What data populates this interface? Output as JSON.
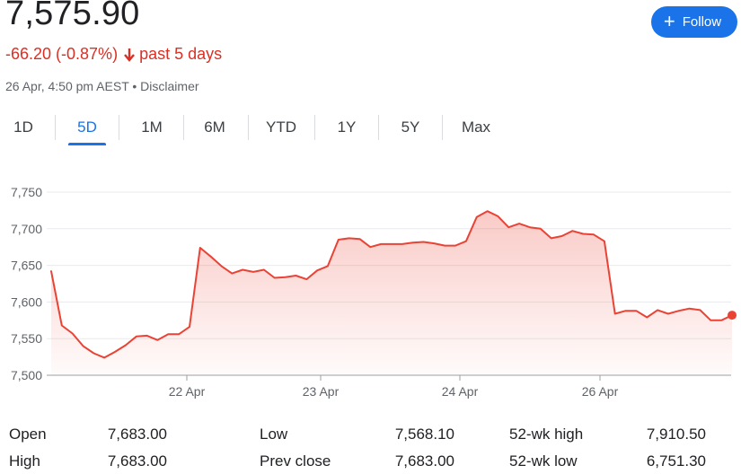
{
  "quote": {
    "price": "7,575.90",
    "change": "-66.20 (-0.87%)",
    "period": "past 5 days",
    "timestamp": "26 Apr, 4:50 pm AEST • Disclaimer",
    "down_color": "#d93025"
  },
  "follow_button": {
    "label": "Follow",
    "icon": "plus-icon",
    "color": "#1a73e8"
  },
  "tabs": [
    {
      "label": "1D"
    },
    {
      "label": "5D",
      "active": true
    },
    {
      "label": "1M"
    },
    {
      "label": "6M"
    },
    {
      "label": "YTD"
    },
    {
      "label": "1Y"
    },
    {
      "label": "5Y"
    },
    {
      "label": "Max"
    }
  ],
  "chart_data": {
    "type": "area",
    "ylim": [
      7500,
      7750
    ],
    "yticks": [
      7500,
      7550,
      7600,
      7650,
      7700,
      7750
    ],
    "ytick_labels": [
      "7,500",
      "7,550",
      "7,600",
      "7,650",
      "7,700",
      "7,750"
    ],
    "xtick_labels": [
      "22 Apr",
      "23 Apr",
      "24 Apr",
      "26 Apr"
    ],
    "grid": true,
    "line_color": "#ea4335",
    "series": [
      {
        "values": [
          7642,
          7568,
          7557,
          7540,
          7530,
          7524,
          7532,
          7541,
          7553,
          7554,
          7548,
          7556,
          7556,
          7566,
          7674,
          7662,
          7649,
          7639,
          7644,
          7641,
          7644,
          7633,
          7634,
          7636,
          7631,
          7643,
          7649,
          7685,
          7687,
          7686,
          7675,
          7679,
          7679,
          7679,
          7681,
          7682,
          7680,
          7677,
          7677,
          7683,
          7716,
          7724,
          7717,
          7702,
          7707,
          7702,
          7700,
          7687,
          7690,
          7697,
          7693,
          7692,
          7683,
          7584,
          7588,
          7588,
          7579,
          7589,
          7584,
          7588,
          7591,
          7589,
          7575,
          7575,
          7582
        ]
      }
    ]
  },
  "stats": [
    {
      "label": "Open",
      "value": "7,683.00"
    },
    {
      "label": "Low",
      "value": "7,568.10"
    },
    {
      "label": "52-wk high",
      "value": "7,910.50"
    },
    {
      "label": "High",
      "value": "7,683.00"
    },
    {
      "label": "Prev close",
      "value": "7,683.00"
    },
    {
      "label": "52-wk low",
      "value": "6,751.30"
    }
  ]
}
